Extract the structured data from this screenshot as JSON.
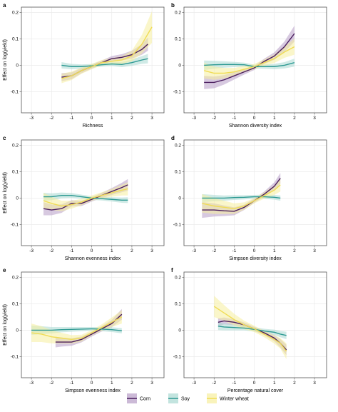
{
  "colors": {
    "corn": "#4a1d5e",
    "corn_band": "#b79cc6",
    "soy": "#2e9a93",
    "soy_band": "#a9d8d2",
    "wheat": "#f0dc55",
    "wheat_band": "#f6ee9e"
  },
  "legend": [
    {
      "key": "corn",
      "label": "Corn"
    },
    {
      "key": "soy",
      "label": "Soy"
    },
    {
      "key": "wheat",
      "label": "Winter wheat"
    }
  ],
  "chart_data": [
    {
      "type": "line",
      "panel": "a",
      "xlabel": "Richness",
      "ylabel": "Effect on log(yield)",
      "xlim": [
        -3.5,
        3.6
      ],
      "ylim": [
        -0.18,
        0.22
      ],
      "xticks": [
        -3,
        -2,
        -1,
        0,
        1,
        2,
        3
      ],
      "yticks": [
        -0.1,
        0,
        0.1,
        0.2
      ],
      "grid": true,
      "series": [
        {
          "name": "Corn",
          "key": "corn",
          "x": [
            -1.5,
            -1.0,
            -0.5,
            0,
            0.5,
            1.0,
            1.5,
            2.0,
            2.5,
            2.8
          ],
          "y": [
            -0.045,
            -0.04,
            -0.02,
            -0.005,
            0.01,
            0.025,
            0.03,
            0.04,
            0.06,
            0.08
          ],
          "band": [
            0.015,
            0.013,
            0.01,
            0.008,
            0.008,
            0.01,
            0.012,
            0.015,
            0.02,
            0.025
          ]
        },
        {
          "name": "Soy",
          "key": "soy",
          "x": [
            -1.5,
            -1.0,
            -0.5,
            0,
            0.5,
            1.0,
            1.5,
            2.0,
            2.5,
            2.8
          ],
          "y": [
            0,
            -0.005,
            -0.005,
            -0.002,
            0.002,
            0.005,
            0.003,
            0.01,
            0.02,
            0.025
          ],
          "band": [
            0.012,
            0.01,
            0.008,
            0.007,
            0.007,
            0.008,
            0.01,
            0.012,
            0.015,
            0.018
          ]
        },
        {
          "name": "Winter wheat",
          "key": "wheat",
          "x": [
            -1.5,
            -1.0,
            -0.5,
            0,
            0.5,
            1.0,
            1.5,
            2.0,
            2.5,
            3.0
          ],
          "y": [
            -0.05,
            -0.04,
            -0.02,
            -0.005,
            0.01,
            0.015,
            0.02,
            0.035,
            0.08,
            0.145
          ],
          "band": [
            0.018,
            0.016,
            0.012,
            0.01,
            0.01,
            0.012,
            0.015,
            0.02,
            0.035,
            0.06
          ]
        }
      ]
    },
    {
      "type": "line",
      "panel": "b",
      "xlabel": "Shannon diversity index",
      "ylabel": "",
      "xlim": [
        -3.5,
        3.6
      ],
      "ylim": [
        -0.18,
        0.22
      ],
      "xticks": [
        -3,
        -2,
        -1,
        0,
        1,
        2,
        3
      ],
      "yticks": [
        -0.1,
        0,
        0.1,
        0.2
      ],
      "grid": true,
      "series": [
        {
          "name": "Corn",
          "key": "corn",
          "x": [
            -2.5,
            -2.0,
            -1.5,
            -1.0,
            -0.5,
            0,
            0.5,
            1.0,
            1.5,
            2.0
          ],
          "y": [
            -0.065,
            -0.065,
            -0.055,
            -0.04,
            -0.025,
            -0.01,
            0.015,
            0.035,
            0.07,
            0.12
          ],
          "band": [
            0.025,
            0.022,
            0.018,
            0.014,
            0.01,
            0.008,
            0.01,
            0.014,
            0.02,
            0.03
          ]
        },
        {
          "name": "Soy",
          "key": "soy",
          "x": [
            -2.5,
            -2.0,
            -1.5,
            -1.0,
            -0.5,
            0,
            0.5,
            1.0,
            1.5,
            2.0
          ],
          "y": [
            0,
            0.002,
            0.003,
            0.003,
            0.002,
            -0.005,
            -0.005,
            -0.005,
            0,
            0.01
          ],
          "band": [
            0.018,
            0.015,
            0.012,
            0.01,
            0.008,
            0.007,
            0.008,
            0.01,
            0.012,
            0.015
          ]
        },
        {
          "name": "Winter wheat",
          "key": "wheat",
          "x": [
            -2.5,
            -2.0,
            -1.5,
            -1.0,
            -0.5,
            0,
            0.5,
            1.0,
            1.5,
            2.0
          ],
          "y": [
            -0.02,
            -0.03,
            -0.03,
            -0.025,
            -0.015,
            -0.005,
            0.01,
            0.025,
            0.05,
            0.07
          ],
          "band": [
            0.03,
            0.025,
            0.02,
            0.015,
            0.012,
            0.01,
            0.012,
            0.016,
            0.022,
            0.03
          ]
        }
      ]
    },
    {
      "type": "line",
      "panel": "c",
      "xlabel": "Shannon evenness index",
      "ylabel": "Effect on log(yield)",
      "xlim": [
        -3.5,
        3.6
      ],
      "ylim": [
        -0.18,
        0.22
      ],
      "xticks": [
        -3,
        -2,
        -1,
        0,
        1,
        2,
        3
      ],
      "yticks": [
        -0.1,
        0,
        0.1,
        0.2
      ],
      "grid": true,
      "series": [
        {
          "name": "Corn",
          "key": "corn",
          "x": [
            -2.4,
            -2.0,
            -1.5,
            -1.0,
            -0.5,
            0,
            0.5,
            1.0,
            1.5,
            1.8
          ],
          "y": [
            -0.04,
            -0.045,
            -0.04,
            -0.02,
            -0.02,
            -0.005,
            0.01,
            0.025,
            0.04,
            0.05
          ],
          "band": [
            0.025,
            0.02,
            0.016,
            0.012,
            0.01,
            0.008,
            0.01,
            0.013,
            0.018,
            0.022
          ]
        },
        {
          "name": "Soy",
          "key": "soy",
          "x": [
            -2.4,
            -2.0,
            -1.5,
            -1.0,
            -0.5,
            0,
            0.5,
            1.0,
            1.5,
            1.8
          ],
          "y": [
            0.005,
            0.005,
            0.01,
            0.01,
            0.005,
            0,
            -0.002,
            -0.005,
            -0.008,
            -0.008
          ],
          "band": [
            0.015,
            0.013,
            0.011,
            0.009,
            0.008,
            0.007,
            0.007,
            0.008,
            0.01,
            0.011
          ]
        },
        {
          "name": "Winter wheat",
          "key": "wheat",
          "x": [
            -2.4,
            -2.0,
            -1.5,
            -1.0,
            -0.5,
            0,
            0.5,
            1.0,
            1.5,
            1.8
          ],
          "y": [
            -0.01,
            -0.02,
            -0.03,
            -0.025,
            -0.015,
            0,
            0.01,
            0.02,
            0.03,
            0.035
          ],
          "band": [
            0.03,
            0.025,
            0.02,
            0.015,
            0.012,
            0.01,
            0.012,
            0.015,
            0.02,
            0.025
          ]
        }
      ]
    },
    {
      "type": "line",
      "panel": "d",
      "xlabel": "Simpson diversity index",
      "ylabel": "",
      "xlim": [
        -3.5,
        3.6
      ],
      "ylim": [
        -0.18,
        0.22
      ],
      "xticks": [
        -3,
        -2,
        -1,
        0,
        1,
        2,
        3
      ],
      "yticks": [
        -0.1,
        0,
        0.1,
        0.2
      ],
      "grid": true,
      "series": [
        {
          "name": "Corn",
          "key": "corn",
          "x": [
            -2.6,
            -2.0,
            -1.5,
            -1.0,
            -0.5,
            0,
            0.5,
            1.0,
            1.3
          ],
          "y": [
            -0.045,
            -0.045,
            -0.048,
            -0.05,
            -0.035,
            -0.01,
            0.015,
            0.045,
            0.075
          ],
          "band": [
            0.03,
            0.025,
            0.02,
            0.015,
            0.01,
            0.008,
            0.01,
            0.015,
            0.02
          ]
        },
        {
          "name": "Soy",
          "key": "soy",
          "x": [
            -2.6,
            -2.0,
            -1.5,
            -1.0,
            -0.5,
            0,
            0.5,
            1.0,
            1.3
          ],
          "y": [
            0,
            0,
            0,
            0.002,
            0.003,
            0.005,
            0.005,
            0.003,
            0
          ],
          "band": [
            0.015,
            0.012,
            0.01,
            0.009,
            0.008,
            0.007,
            0.008,
            0.009,
            0.01
          ]
        },
        {
          "name": "Winter wheat",
          "key": "wheat",
          "x": [
            -2.6,
            -2.0,
            -1.5,
            -1.0,
            -0.5,
            0,
            0.5,
            1.0,
            1.3
          ],
          "y": [
            -0.02,
            -0.03,
            -0.035,
            -0.04,
            -0.03,
            -0.01,
            0.01,
            0.03,
            0.05
          ],
          "band": [
            0.035,
            0.03,
            0.025,
            0.02,
            0.014,
            0.01,
            0.012,
            0.018,
            0.025
          ]
        }
      ]
    },
    {
      "type": "line",
      "panel": "e",
      "xlabel": "Simpson evenness index",
      "ylabel": "Effect on log(yield)",
      "xlim": [
        -3.5,
        3.6
      ],
      "ylim": [
        -0.18,
        0.22
      ],
      "xticks": [
        -3,
        -2,
        -1,
        0,
        1,
        2,
        3
      ],
      "yticks": [
        -0.1,
        0,
        0.1,
        0.2
      ],
      "grid": true,
      "series": [
        {
          "name": "Corn",
          "key": "corn",
          "x": [
            -1.8,
            -1.5,
            -1.0,
            -0.5,
            0,
            0.5,
            1.0,
            1.5
          ],
          "y": [
            -0.045,
            -0.045,
            -0.045,
            -0.035,
            -0.015,
            0.005,
            0.025,
            0.06
          ],
          "band": [
            0.02,
            0.017,
            0.014,
            0.011,
            0.009,
            0.01,
            0.014,
            0.02
          ]
        },
        {
          "name": "Soy",
          "key": "soy",
          "x": [
            -3.0,
            -2.5,
            -2.0,
            -1.5,
            -1.0,
            -0.5,
            0,
            0.5,
            1.0,
            1.5
          ],
          "y": [
            0,
            0,
            0,
            0.002,
            0.003,
            0.004,
            0.005,
            0.004,
            0.002,
            -0.002
          ],
          "band": [
            0.018,
            0.015,
            0.012,
            0.01,
            0.009,
            0.008,
            0.007,
            0.008,
            0.009,
            0.01
          ]
        },
        {
          "name": "Winter wheat",
          "key": "wheat",
          "x": [
            -3.0,
            -2.5,
            -2.0,
            -1.5,
            -1.0,
            -0.5,
            0,
            0.5,
            1.0,
            1.5
          ],
          "y": [
            -0.01,
            -0.015,
            -0.025,
            -0.03,
            -0.035,
            -0.03,
            -0.01,
            0.01,
            0.03,
            0.05
          ],
          "band": [
            0.035,
            0.03,
            0.025,
            0.02,
            0.016,
            0.013,
            0.01,
            0.012,
            0.018,
            0.025
          ]
        }
      ]
    },
    {
      "type": "line",
      "panel": "f",
      "xlabel": "Percentage natural cover",
      "ylabel": "",
      "xlim": [
        -3.5,
        3.6
      ],
      "ylim": [
        -0.18,
        0.22
      ],
      "xticks": [
        -3,
        -2,
        -1,
        0,
        1,
        2,
        3
      ],
      "yticks": [
        -0.1,
        0,
        0.1,
        0.2
      ],
      "grid": true,
      "series": [
        {
          "name": "Corn",
          "key": "corn",
          "x": [
            -1.8,
            -1.5,
            -1.0,
            -0.5,
            0,
            0.5,
            1.0,
            1.3,
            1.6
          ],
          "y": [
            0.03,
            0.035,
            0.03,
            0.02,
            0.005,
            -0.01,
            -0.03,
            -0.05,
            -0.075
          ],
          "band": [
            0.015,
            0.013,
            0.011,
            0.009,
            0.008,
            0.009,
            0.012,
            0.016,
            0.02
          ]
        },
        {
          "name": "Soy",
          "key": "soy",
          "x": [
            -1.8,
            -1.5,
            -1.0,
            -0.5,
            0,
            0.5,
            1.0,
            1.3,
            1.6
          ],
          "y": [
            0.015,
            0.012,
            0.01,
            0.008,
            0.003,
            -0.003,
            -0.008,
            -0.015,
            -0.02
          ],
          "band": [
            0.015,
            0.013,
            0.011,
            0.009,
            0.008,
            0.008,
            0.01,
            0.012,
            0.014
          ]
        },
        {
          "name": "Winter wheat",
          "key": "wheat",
          "x": [
            -2.0,
            -1.5,
            -1.0,
            -0.5,
            0,
            0.5,
            1.0,
            1.3,
            1.6
          ],
          "y": [
            0.09,
            0.065,
            0.04,
            0.02,
            0.005,
            -0.015,
            -0.035,
            -0.05,
            -0.08
          ],
          "band": [
            0.04,
            0.03,
            0.022,
            0.016,
            0.012,
            0.012,
            0.016,
            0.02,
            0.03
          ]
        }
      ]
    }
  ]
}
